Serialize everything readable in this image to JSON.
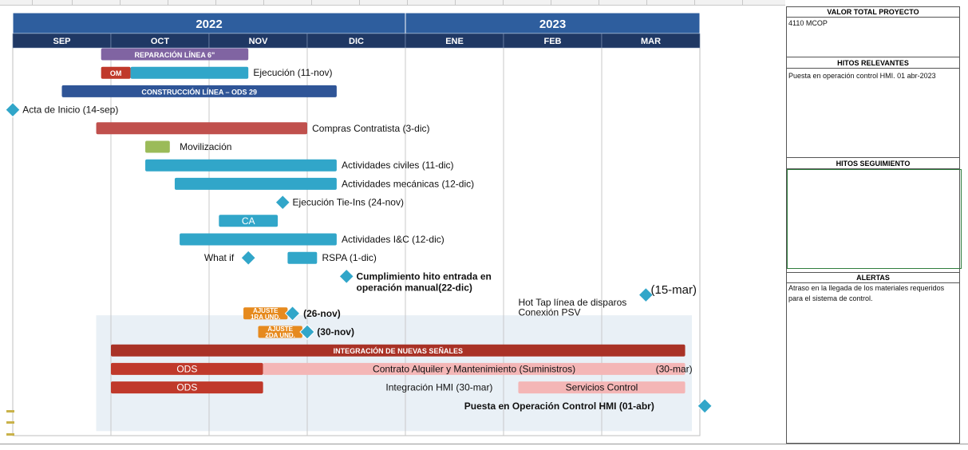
{
  "chart_data": {
    "type": "gantt",
    "years": [
      {
        "label": "2022",
        "start_month": 0,
        "span": 4
      },
      {
        "label": "2023",
        "start_month": 4,
        "span": 3
      }
    ],
    "months": [
      "SEP",
      "OCT",
      "NOV",
      "DIC",
      "ENE",
      "FEB",
      "MAR"
    ],
    "tasks": [
      {
        "id": "rep-header",
        "label": "REPARACIÓN LÍNEA 6\"",
        "start": 0.9,
        "end": 2.4,
        "row": 0,
        "color": "#8064a2",
        "label_inside": true,
        "bold": true
      },
      {
        "id": "om",
        "label": "OM",
        "start": 0.9,
        "end": 1.2,
        "row": 1,
        "color": "#c0392b",
        "label_inside": true,
        "bold": true
      },
      {
        "id": "ejec-line",
        "label": "",
        "start": 1.2,
        "end": 2.4,
        "row": 1,
        "color": "#31a6c9"
      },
      {
        "id": "const-header",
        "label": "CONSTRUCCIÓN LÍNEA – ODS 29",
        "start": 0.5,
        "end": 3.3,
        "row": 2,
        "color": "#2f5597",
        "label_inside": true,
        "bold": true
      },
      {
        "id": "compras",
        "label": "",
        "start": 0.85,
        "end": 3.0,
        "row": 4,
        "color": "#c0504d"
      },
      {
        "id": "moviliz",
        "label": "",
        "start": 1.35,
        "end": 1.6,
        "row": 5,
        "color": "#9bbb59"
      },
      {
        "id": "civiles",
        "label": "",
        "start": 1.35,
        "end": 3.3,
        "row": 6,
        "color": "#31a6c9"
      },
      {
        "id": "mecanicas",
        "label": "",
        "start": 1.65,
        "end": 3.3,
        "row": 7,
        "color": "#31a6c9"
      },
      {
        "id": "ca",
        "label": "CA",
        "start": 2.1,
        "end": 2.7,
        "row": 9,
        "color": "#31a6c9",
        "label_inside": true
      },
      {
        "id": "iyc",
        "label": "",
        "start": 1.7,
        "end": 3.3,
        "row": 10,
        "color": "#31a6c9"
      },
      {
        "id": "rspa",
        "label": "",
        "start": 2.8,
        "end": 3.1,
        "row": 11,
        "color": "#31a6c9"
      },
      {
        "id": "ajuste1",
        "label": "AJUSTE\n1RA UND.",
        "start": 2.35,
        "end": 2.8,
        "row": 14,
        "color": "#e68a1e",
        "label_inside": true,
        "bold": true
      },
      {
        "id": "ajuste2",
        "label": "AJUSTE\n2DA UND.",
        "start": 2.5,
        "end": 2.95,
        "row": 15,
        "color": "#e68a1e",
        "label_inside": true,
        "bold": true
      },
      {
        "id": "integracion",
        "label": "INTEGRACIÓN DE NUEVAS SEÑALES",
        "start": 1.0,
        "end": 6.85,
        "row": 16,
        "color": "#a93226",
        "label_inside": true,
        "bold": true
      },
      {
        "id": "ods1",
        "label": "ODS",
        "start": 1.0,
        "end": 2.55,
        "row": 17,
        "color": "#c0392b",
        "label_inside": true
      },
      {
        "id": "suministros",
        "label": "Contrato Alquiler y Mantenimiento (Suministros)",
        "start": 2.55,
        "end": 6.85,
        "row": 17,
        "color": "#f4b6b6",
        "label_inside": true
      },
      {
        "id": "ods2",
        "label": "ODS",
        "start": 1.0,
        "end": 2.55,
        "row": 18,
        "color": "#c0392b",
        "label_inside": true
      },
      {
        "id": "servicios",
        "label": "Servicios Control",
        "start": 5.15,
        "end": 6.85,
        "row": 18,
        "color": "#f4b6b6",
        "label_inside": true
      }
    ],
    "milestones": [
      {
        "id": "acta",
        "date": 0.0,
        "row": 3
      },
      {
        "id": "tieins",
        "date": 2.75,
        "row": 8
      },
      {
        "id": "whatif",
        "date": 2.4,
        "row": 11
      },
      {
        "id": "cumpl",
        "date": 3.4,
        "row": 12
      },
      {
        "id": "hottap",
        "date": 6.45,
        "row": 13
      },
      {
        "id": "aj1",
        "date": 2.85,
        "row": 14
      },
      {
        "id": "aj2",
        "date": 3.0,
        "row": 15
      },
      {
        "id": "puesta",
        "date": 7.05,
        "row": 19
      }
    ],
    "annotations": [
      {
        "id": "ejecucion",
        "text": "Ejecución (11-nov)",
        "anchor": 2.45,
        "row": 1
      },
      {
        "id": "acta",
        "text": "Acta de Inicio (14-sep)",
        "anchor": 0.1,
        "row": 3
      },
      {
        "id": "compras",
        "text": "Compras Contratista (3-dic)",
        "anchor": 3.05,
        "row": 4
      },
      {
        "id": "moviliz",
        "text": "Movilización",
        "anchor": 1.7,
        "row": 5
      },
      {
        "id": "civiles",
        "text": "Actividades civiles (11-dic)",
        "anchor": 3.35,
        "row": 6
      },
      {
        "id": "mecanicas",
        "text": "Actividades mecánicas (12-dic)",
        "anchor": 3.35,
        "row": 7
      },
      {
        "id": "tieins",
        "text": "Ejecución Tie-Ins (24-nov)",
        "anchor": 2.85,
        "row": 8
      },
      {
        "id": "iyc",
        "text": "Actividades I&C  (12-dic)",
        "anchor": 3.35,
        "row": 10
      },
      {
        "id": "whatif",
        "text": "What if",
        "anchor": 1.95,
        "row": 11
      },
      {
        "id": "rspa",
        "text": "RSPA (1-dic)",
        "anchor": 3.15,
        "row": 11
      },
      {
        "id": "cumpl1",
        "text": "Cumplimiento hito entrada en",
        "anchor": 3.5,
        "row": 12,
        "bold": true
      },
      {
        "id": "cumpl2",
        "text": "operación manual(22-dic)",
        "anchor": 3.5,
        "row": 12.6,
        "bold": true
      },
      {
        "id": "mar15",
        "text": "(15-mar)",
        "anchor": 6.5,
        "row": 12.75,
        "large": true
      },
      {
        "id": "hottap1",
        "text": "Hot Tap línea de disparos",
        "anchor": 5.15,
        "row": 13.4
      },
      {
        "id": "hottap2",
        "text": "Conexión PSV",
        "anchor": 5.15,
        "row": 13.95
      },
      {
        "id": "aj1",
        "text": "(26-nov)",
        "anchor": 2.96,
        "row": 14,
        "bold": true
      },
      {
        "id": "aj2",
        "text": "(30-nov)",
        "anchor": 3.1,
        "row": 15,
        "bold": true
      },
      {
        "id": "mar30",
        "text": "(30-mar)",
        "anchor": 6.55,
        "row": 17
      },
      {
        "id": "hmi",
        "text": "Integración HMI (30-mar)",
        "anchor": 3.8,
        "row": 18
      },
      {
        "id": "puesta",
        "text": "Puesta en Operación Control HMI (01-abr)",
        "anchor": 4.6,
        "row": 19,
        "bold": true
      }
    ]
  },
  "side_panel": {
    "valor_title": "VALOR TOTAL PROYECTO",
    "valor_value": "4110  MCOP",
    "hitos_title": "HITOS RELEVANTES",
    "hitos_text": "Puesta en operación control HMI. 01 abr-2023",
    "seguimiento_title": "HITOS SEGUIMIENTO",
    "alertas_title": "ALERTAS",
    "alertas_text": "Atraso en la llegada de los materiales requeridos para el sistema de control."
  },
  "colors": {
    "header_dark": "#1f3864",
    "header_mid": "#2e5e9e",
    "milestone": "#31a6c9",
    "shade": "#e9f0f6"
  }
}
